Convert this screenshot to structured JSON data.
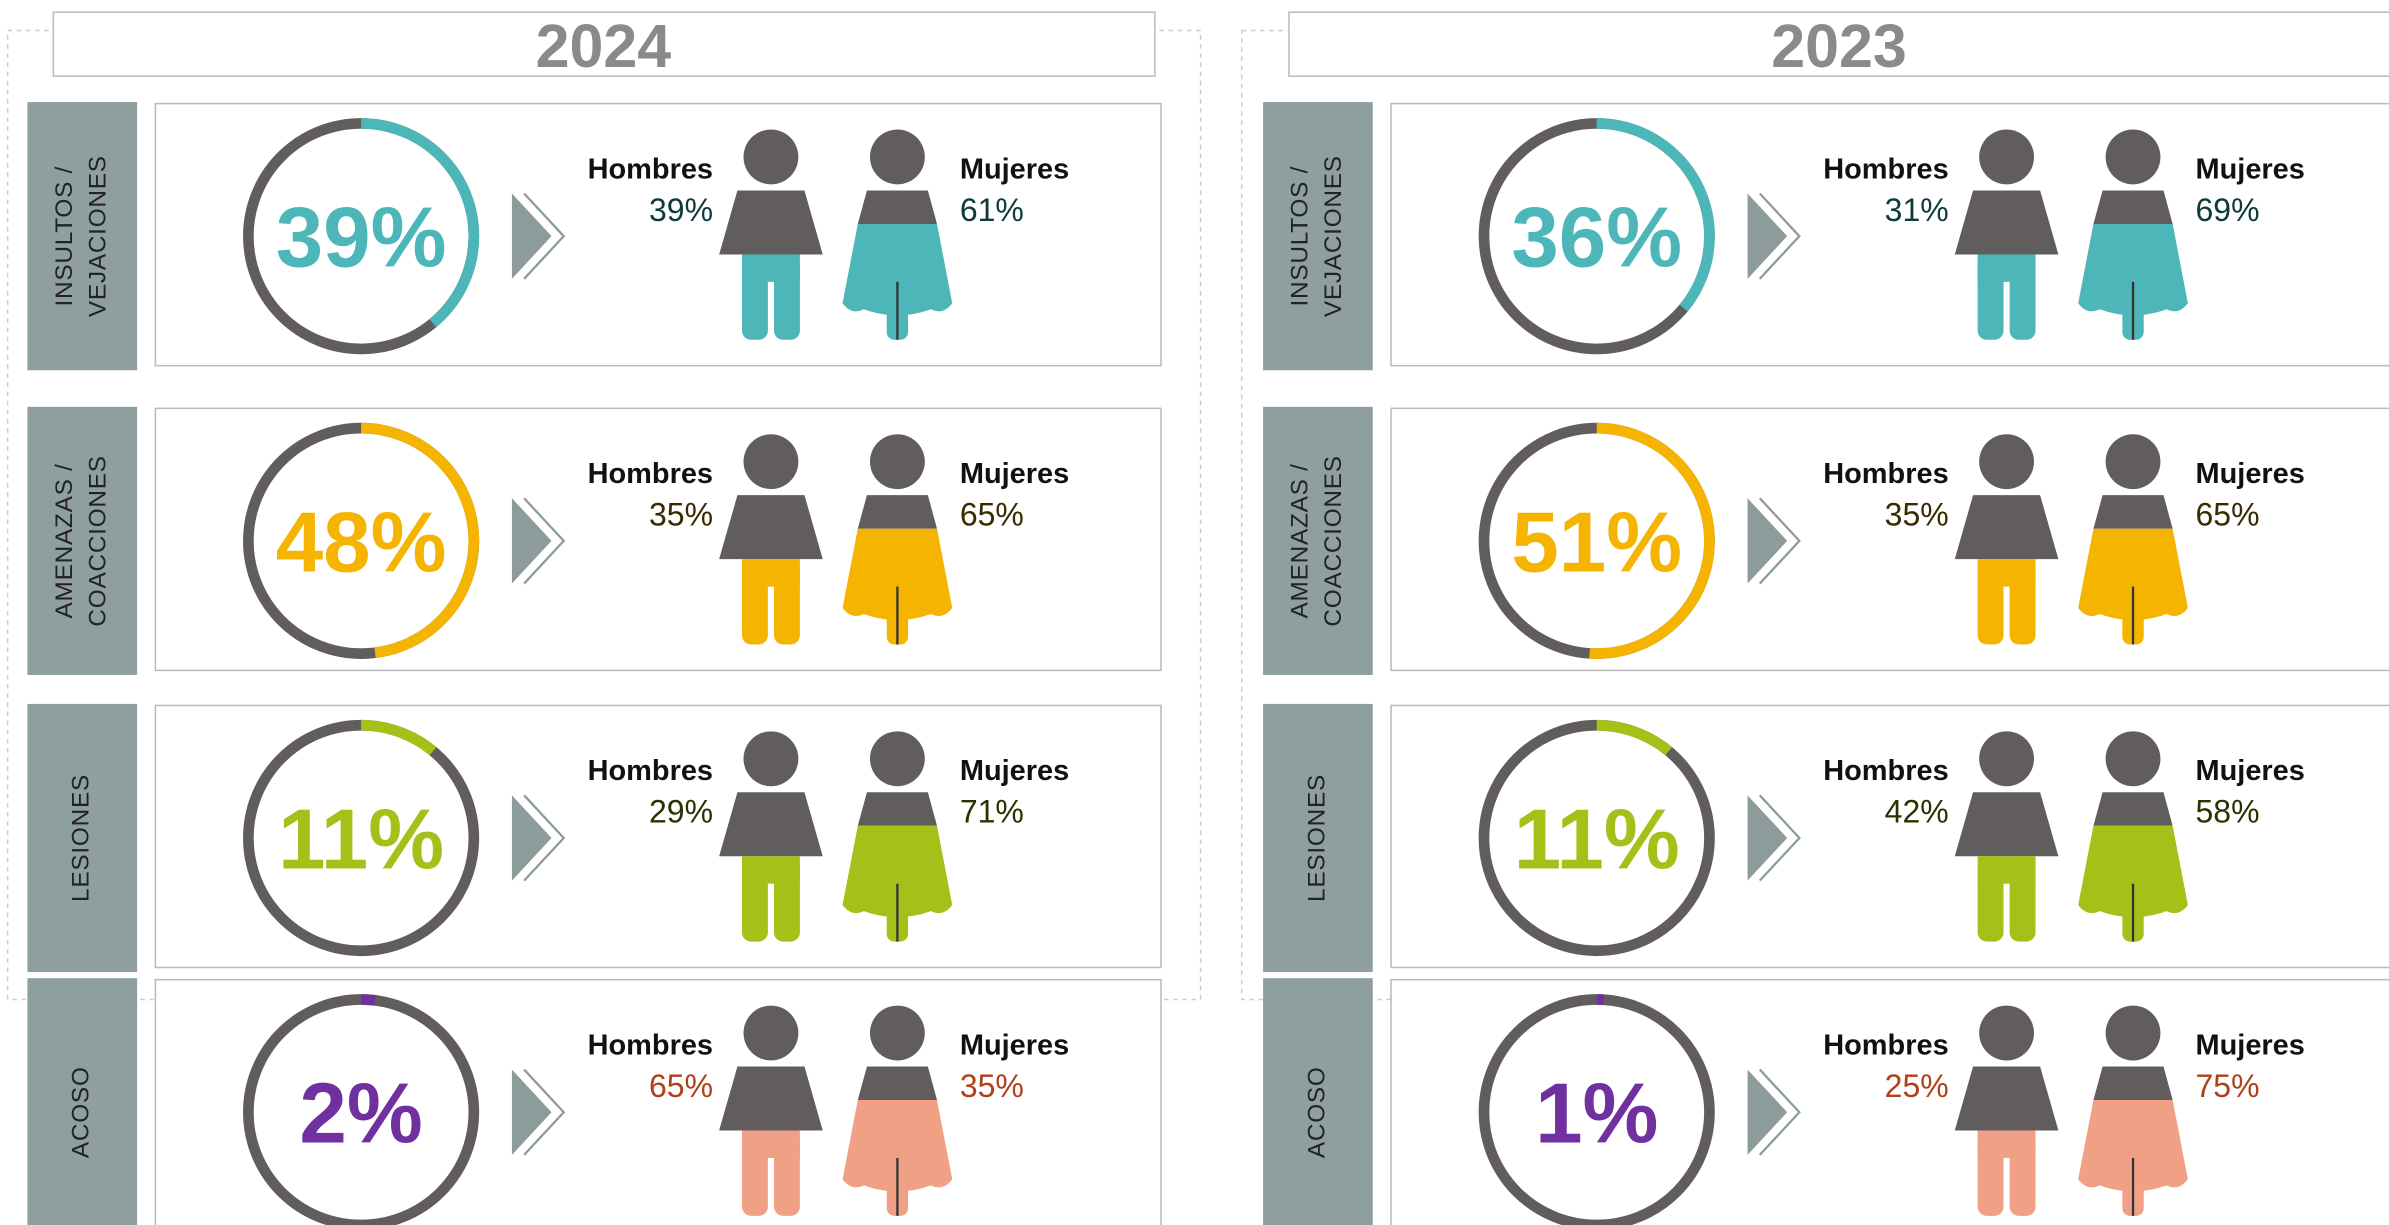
{
  "panels": [
    {
      "year": "2024",
      "rows": [
        {
          "category": [
            "INSULTOS /",
            "VEJACIONES"
          ],
          "total": 39,
          "total_label": "39%",
          "color": "#4db6b8",
          "label_color": "#0d3b3b",
          "men_label": "Hombres",
          "men": "39%",
          "women_label": "Mujeres",
          "women": "61%"
        },
        {
          "category": [
            "AMENAZAS /",
            "COACCIONES"
          ],
          "total": 48,
          "total_label": "48%",
          "color": "#f5b400",
          "label_color": "#3a2a00",
          "men_label": "Hombres",
          "men": "35%",
          "women_label": "Mujeres",
          "women": "65%"
        },
        {
          "category": [
            "LESIONES"
          ],
          "total": 11,
          "total_label": "11%",
          "color": "#a4c11a",
          "label_color": "#2a3300",
          "men_label": "Hombres",
          "men": "29%",
          "women_label": "Mujeres",
          "women": "71%"
        },
        {
          "category": [
            "ACOSO"
          ],
          "total": 2,
          "total_label": "2%",
          "color": "#7030a0",
          "figure_color": "#f0a085",
          "label_color": "#b0401a",
          "men_label": "Hombres",
          "men": "65%",
          "women_label": "Mujeres",
          "women": "35%"
        }
      ]
    },
    {
      "year": "2023",
      "rows": [
        {
          "category": [
            "INSULTOS /",
            "VEJACIONES"
          ],
          "total": 36,
          "total_label": "36%",
          "color": "#4db6b8",
          "label_color": "#0d3b3b",
          "men_label": "Hombres",
          "men": "31%",
          "women_label": "Mujeres",
          "women": "69%"
        },
        {
          "category": [
            "AMENAZAS /",
            "COACCIONES"
          ],
          "total": 51,
          "total_label": "51%",
          "color": "#f5b400",
          "label_color": "#3a2a00",
          "men_label": "Hombres",
          "men": "35%",
          "women_label": "Mujeres",
          "women": "65%"
        },
        {
          "category": [
            "LESIONES"
          ],
          "total": 11,
          "total_label": "11%",
          "color": "#a4c11a",
          "label_color": "#2a3300",
          "men_label": "Hombres",
          "men": "42%",
          "women_label": "Mujeres",
          "women": "58%"
        },
        {
          "category": [
            "ACOSO"
          ],
          "total": 1,
          "total_label": "1%",
          "color": "#7030a0",
          "figure_color": "#f0a085",
          "label_color": "#b0401a",
          "men_label": "Hombres",
          "men": "25%",
          "women_label": "Mujeres",
          "women": "75%"
        }
      ]
    }
  ]
}
